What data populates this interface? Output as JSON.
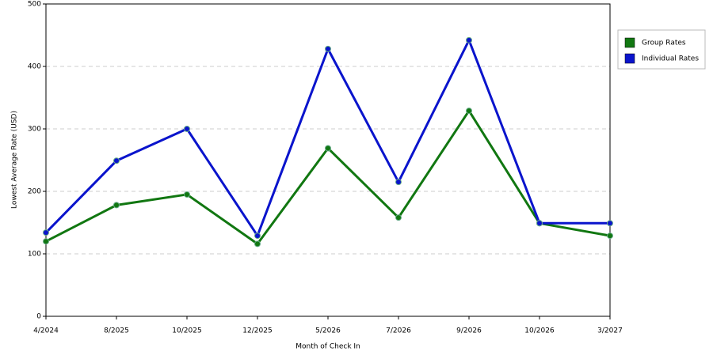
{
  "chart_data": {
    "type": "line",
    "x_label": "Month of Check In",
    "y_label": "Lowest Average Rate (USD)",
    "categories": [
      "4/2024",
      "8/2025",
      "10/2025",
      "12/2025",
      "5/2026",
      "7/2026",
      "9/2026",
      "10/2026",
      "3/2027"
    ],
    "series": [
      {
        "name": "Group Rates",
        "color": "#117711",
        "values": [
          120,
          178,
          195,
          116,
          269,
          158,
          329,
          149,
          129
        ]
      },
      {
        "name": "Individual Rates",
        "color": "#0a14cc",
        "values": [
          134,
          249,
          300,
          129,
          428,
          215,
          442,
          149,
          149
        ]
      }
    ],
    "ylim": [
      0,
      500
    ],
    "yticks": [
      0,
      100,
      200,
      300,
      400,
      500
    ],
    "grid": true,
    "legend": "right"
  }
}
